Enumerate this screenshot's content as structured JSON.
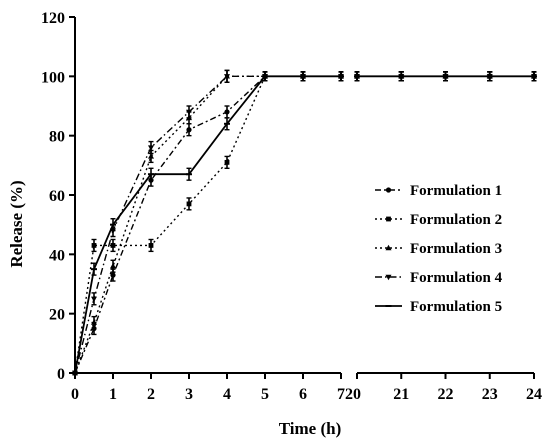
{
  "chart_data": {
    "type": "line",
    "xlabel": "Time (h)",
    "ylabel": "Release (%)",
    "ylim": [
      0,
      120
    ],
    "yticks": [
      0,
      20,
      40,
      60,
      80,
      100,
      120
    ],
    "x_segments": [
      {
        "range": [
          0,
          7
        ],
        "ticks": [
          0,
          1,
          2,
          3,
          4,
          5,
          6,
          7
        ]
      },
      {
        "range": [
          20,
          24
        ],
        "ticks": [
          20,
          21,
          22,
          23,
          24
        ]
      }
    ],
    "broken_axis_label": "720",
    "legend_position": "right",
    "series": [
      {
        "name": "Formulation 1",
        "style": "dashed-dot",
        "x": [
          0,
          0.5,
          1,
          2,
          3,
          4,
          5,
          6,
          7,
          20,
          21,
          22,
          23,
          24
        ],
        "y": [
          0,
          15,
          33,
          65,
          82,
          88,
          100,
          100,
          100,
          100,
          100,
          100,
          100,
          100
        ],
        "err": [
          0,
          2,
          2,
          2,
          2,
          2,
          1.5,
          1.5,
          1.5,
          1.5,
          1.5,
          1.5,
          1.5,
          1.5
        ]
      },
      {
        "name": "Formulation 2",
        "style": "dotted",
        "x": [
          0,
          0.5,
          1,
          2,
          3,
          4,
          5,
          6,
          7,
          20,
          21,
          22,
          23,
          24
        ],
        "y": [
          0,
          43,
          43,
          43,
          57,
          71,
          100,
          100,
          100,
          100,
          100,
          100,
          100,
          100
        ],
        "err": [
          0,
          2,
          2,
          2,
          2,
          2,
          1.5,
          1.5,
          1.5,
          1.5,
          1.5,
          1.5,
          1.5,
          1.5
        ]
      },
      {
        "name": "Formulation 3",
        "style": "dotted",
        "x": [
          0,
          0.5,
          1,
          2,
          3,
          4,
          5,
          6,
          7,
          20,
          21,
          22,
          23,
          24
        ],
        "y": [
          0,
          17,
          36,
          73,
          86,
          100,
          100,
          100,
          100,
          100,
          100,
          100,
          100,
          100
        ],
        "err": [
          0,
          2,
          2,
          2,
          2,
          2,
          1.5,
          1.5,
          1.5,
          1.5,
          1.5,
          1.5,
          1.5,
          1.5
        ]
      },
      {
        "name": "Formulation 4",
        "style": "dash-dot",
        "x": [
          0,
          0.5,
          1,
          2,
          3,
          4,
          5,
          6,
          7,
          20,
          21,
          22,
          23,
          24
        ],
        "y": [
          0,
          25,
          48,
          76,
          88,
          100,
          100,
          100,
          100,
          100,
          100,
          100,
          100,
          100
        ],
        "err": [
          0,
          2,
          2,
          2,
          2,
          2,
          1.5,
          1.5,
          1.5,
          1.5,
          1.5,
          1.5,
          1.5,
          1.5
        ]
      },
      {
        "name": "Formulation 5",
        "style": "solid",
        "x": [
          0,
          0.5,
          1,
          2,
          3,
          4,
          5,
          6,
          7,
          20,
          21,
          22,
          23,
          24
        ],
        "y": [
          0,
          35,
          50,
          67,
          67,
          84,
          100,
          100,
          100,
          100,
          100,
          100,
          100,
          100
        ],
        "err": [
          0,
          2,
          2,
          2,
          2,
          2,
          1.5,
          1.5,
          1.5,
          1.5,
          1.5,
          1.5,
          1.5,
          1.5
        ]
      }
    ]
  }
}
